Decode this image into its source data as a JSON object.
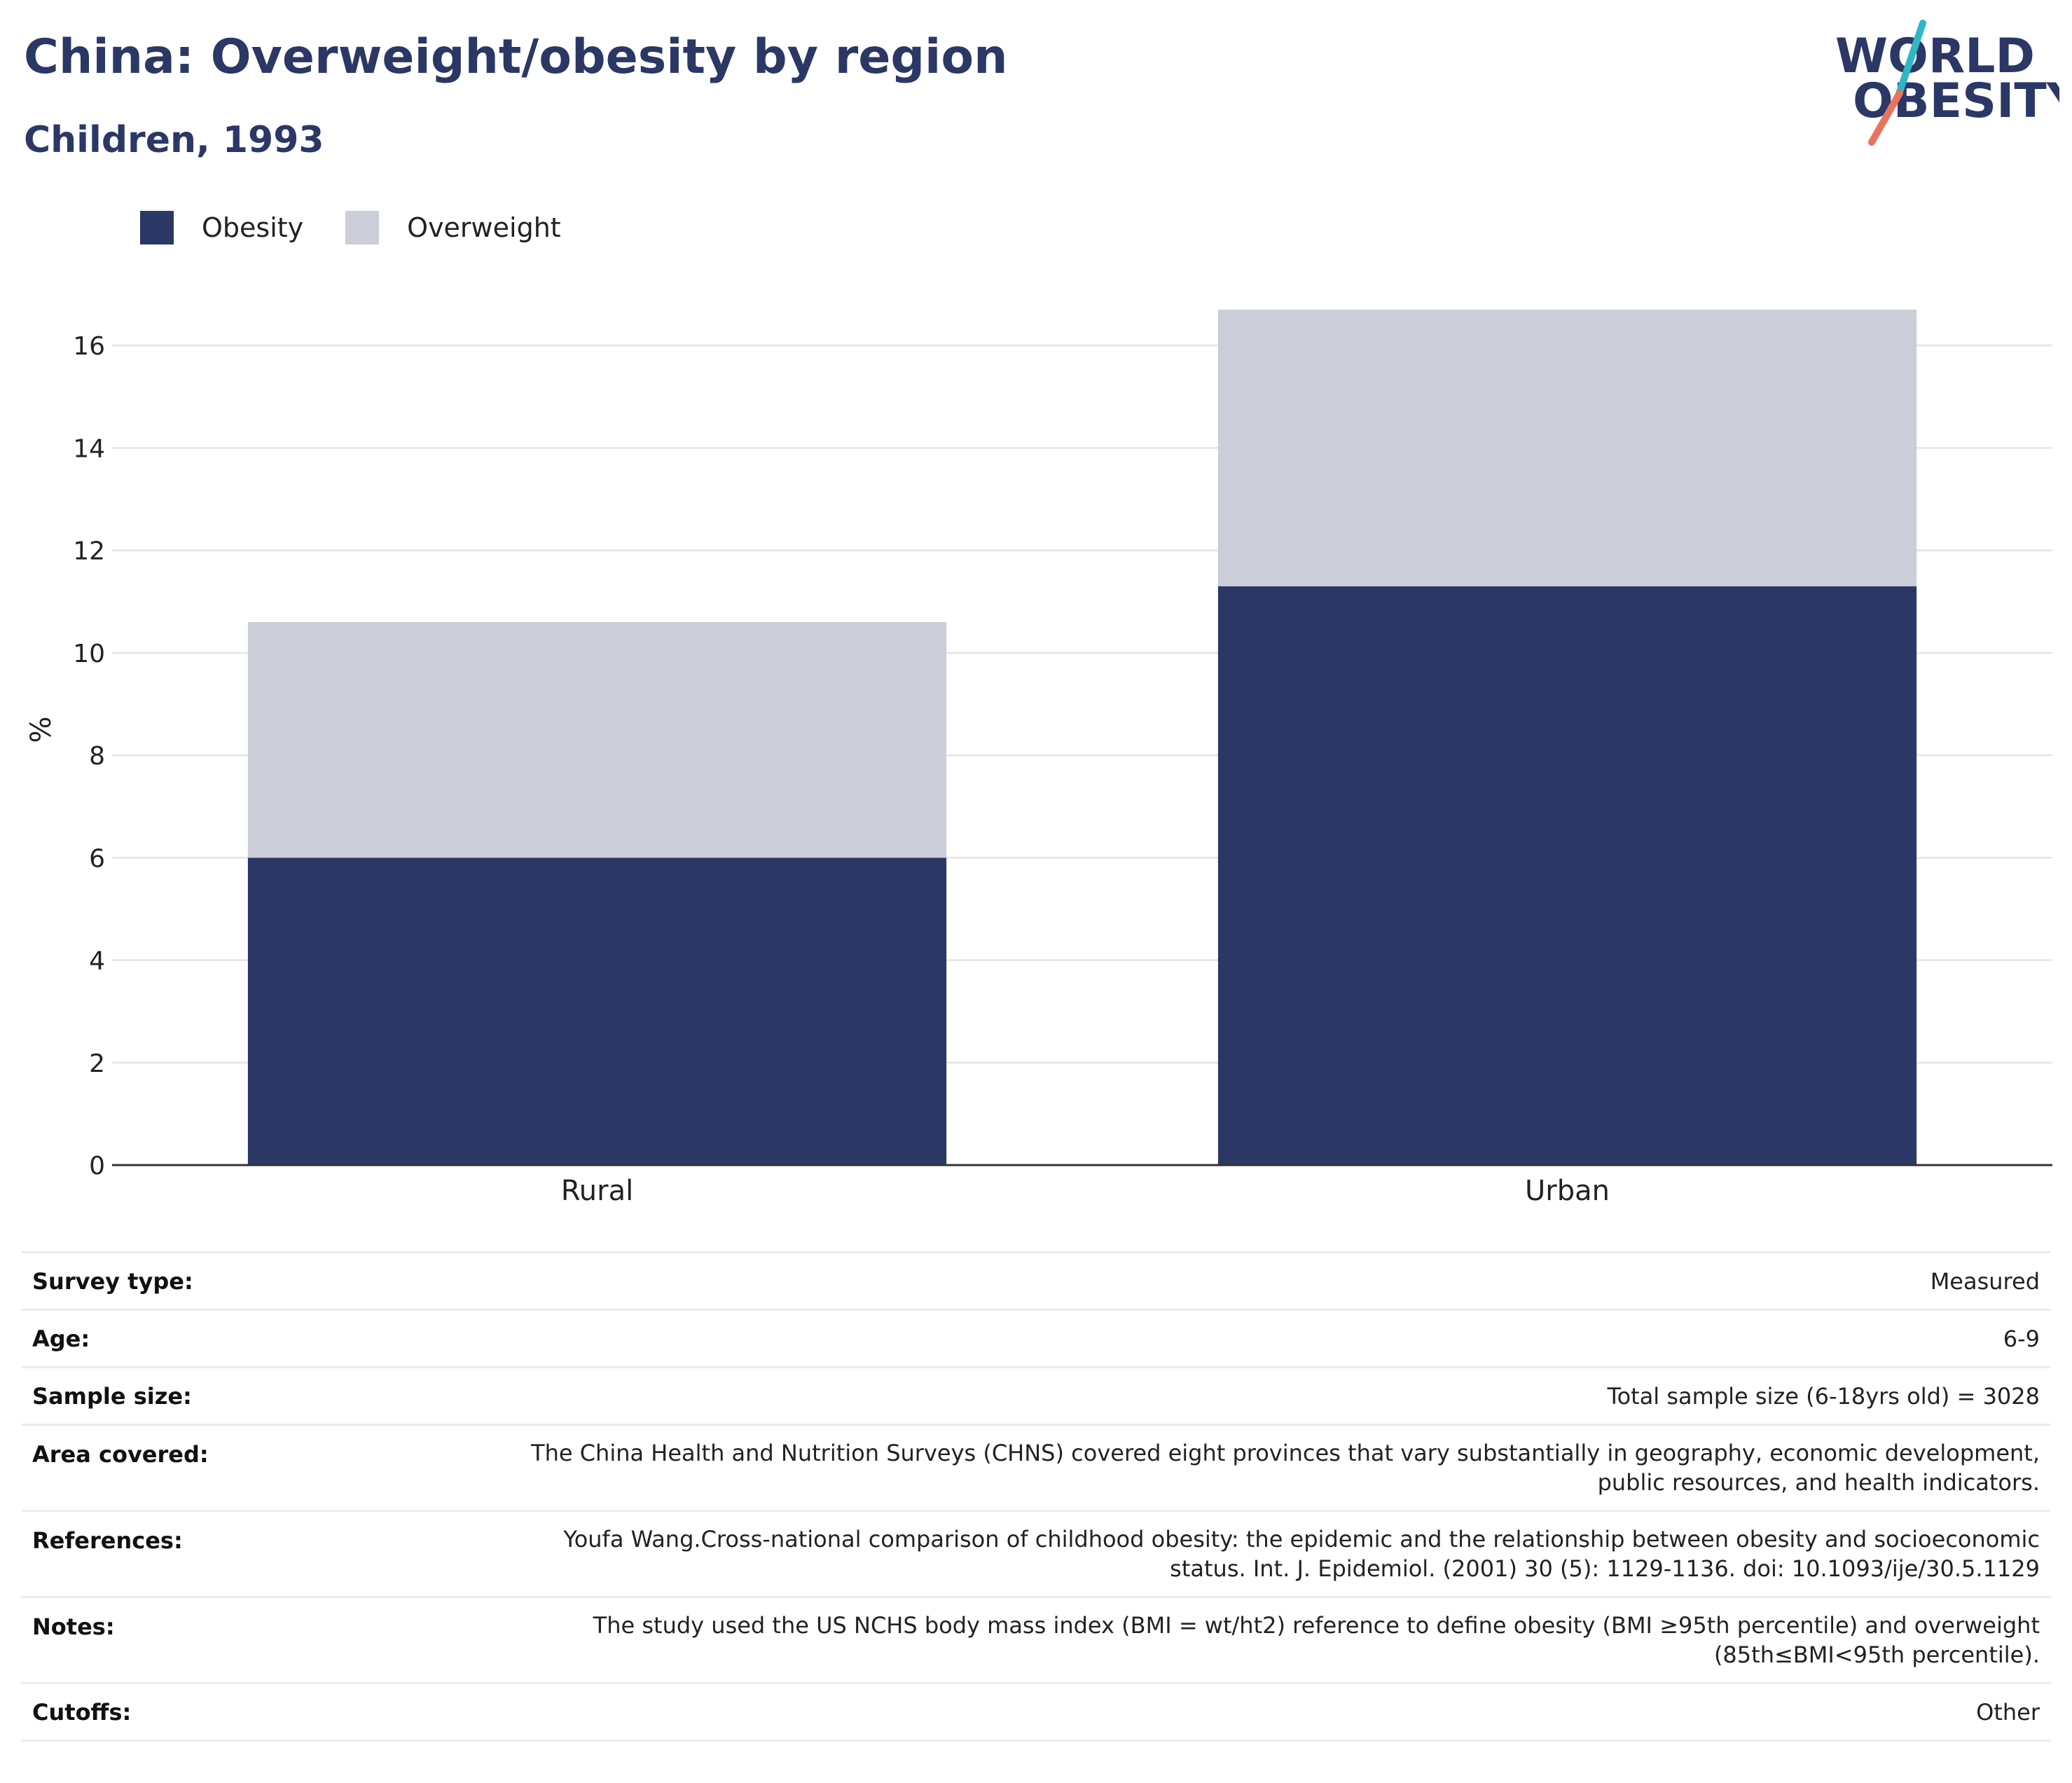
{
  "header": {
    "title": "China: Overweight/obesity by region",
    "subtitle": "Children, 1993"
  },
  "logo": {
    "line1": "WORLD",
    "line2": "OBESITY",
    "colors": {
      "text": "#2b3764",
      "slash_top": "#2fb8c4",
      "slash_bottom": "#e8735f"
    }
  },
  "legend": [
    {
      "label": "Obesity",
      "color": "#2b3764"
    },
    {
      "label": "Overweight",
      "color": "#cbcdd8"
    }
  ],
  "chart_data": {
    "type": "bar",
    "stacked": true,
    "categories": [
      "Rural",
      "Urban"
    ],
    "series": [
      {
        "name": "Obesity",
        "color": "#2b3764",
        "values": [
          6.0,
          11.3
        ]
      },
      {
        "name": "Overweight",
        "color": "#cbcdd8",
        "values": [
          4.6,
          5.4
        ]
      }
    ],
    "ylabel": "%",
    "ylim": [
      0,
      17
    ],
    "yticks": [
      0,
      2,
      4,
      6,
      8,
      10,
      12,
      14,
      16
    ],
    "grid": true,
    "legend_position": "top-left"
  },
  "meta": [
    {
      "key": "Survey type:",
      "lines": [
        "Measured"
      ]
    },
    {
      "key": "Age:",
      "lines": [
        "6-9"
      ]
    },
    {
      "key": "Sample size:",
      "lines": [
        "Total sample size (6-18yrs old) = 3028"
      ]
    },
    {
      "key": "Area covered:",
      "lines": [
        "The China Health and Nutrition Surveys (CHNS) covered eight provinces that vary substantially in geography, economic development,",
        "public resources, and health indicators."
      ]
    },
    {
      "key": "References:",
      "lines": [
        "Youfa Wang.Cross-national comparison of childhood obesity: the epidemic and the relationship between obesity and socioeconomic",
        "status. Int. J. Epidemiol. (2001) 30 (5): 1129-1136. doi: 10.1093/ije/30.5.1129"
      ]
    },
    {
      "key": "Notes:",
      "lines": [
        "The study used the US NCHS body mass index (BMI = wt/ht2) reference to define obesity (BMI ≥95th percentile) and overweight",
        "(85th≤BMI<95th percentile)."
      ]
    },
    {
      "key": "Cutoffs:",
      "lines": [
        "Other"
      ]
    }
  ]
}
